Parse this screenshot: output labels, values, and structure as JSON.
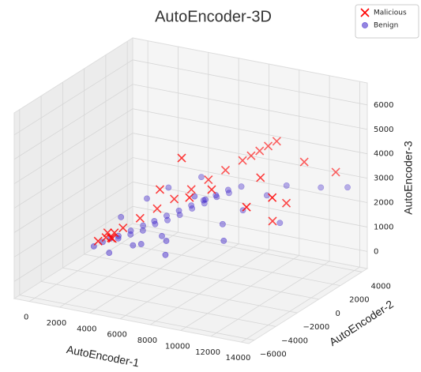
{
  "chart_data": {
    "type": "scatter3d",
    "title": "AutoEncoder-3D",
    "xlabel": "AutoEncoder-1",
    "ylabel": "AutoEncoder-2",
    "zlabel": "AutoEncoder-3",
    "xlim": [
      -1000,
      14500
    ],
    "ylim": [
      -6500,
      4500
    ],
    "zlim": [
      -700,
      6900
    ],
    "xticks": [
      0,
      2000,
      4000,
      6000,
      8000,
      10000,
      12000,
      14000
    ],
    "yticks": [
      {
        "value": -6000,
        "label": "−6000"
      },
      {
        "value": -4000,
        "label": "−4000"
      },
      {
        "value": -2000,
        "label": "−2000"
      },
      0,
      2000,
      4000
    ],
    "zticks": [
      0,
      1000,
      2000,
      3000,
      4000,
      5000,
      6000
    ],
    "grid": true,
    "legend": "upper right",
    "series": [
      {
        "name": "Malicious",
        "color": "#ff0000",
        "marker": "x",
        "x": [
          1500,
          1890,
          2280,
          3060,
          3840,
          4620,
          5400,
          6180,
          6960,
          7740,
          8130,
          8520,
          8910,
          9300,
          1200,
          1700,
          2000,
          1400,
          6150,
          8130,
          12000,
          13700,
          11900,
          13200,
          11370,
          12000,
          7450,
          11000,
          4500
        ],
        "y": [
          -1500,
          -1255,
          -1010,
          -520,
          -30,
          460,
          950,
          1440,
          1930,
          2420,
          2665,
          2910,
          3155,
          3400,
          -1800,
          -1300,
          -1600,
          -1200,
          -1000,
          -1000,
          -3200,
          -3200,
          2300,
          3400,
          100,
          500,
          -2100,
          -500,
          -700
        ],
        "z": [
          700,
          875,
          1050,
          1400,
          1750,
          2100,
          2450,
          2800,
          3150,
          3500,
          3675,
          3850,
          4025,
          4200,
          600,
          650,
          750,
          800,
          4370,
          3310,
          3670,
          4260,
          3970,
          3400,
          2100,
          2800,
          3210,
          4000,
          2800
        ]
      },
      {
        "name": "Benign",
        "color": "#3a1fc8",
        "marker": "o",
        "x": [
          1500,
          1800,
          2100,
          2400,
          2700,
          3000,
          3300,
          3600,
          3900,
          4200,
          4500,
          4800,
          5100,
          5400,
          5700,
          6000,
          6300,
          6600,
          6900,
          7200,
          7500,
          7800,
          8100,
          2000,
          3500,
          4400,
          5200,
          6200,
          7000,
          8500,
          9200,
          10000,
          10800,
          12500,
          13980,
          11500,
          9500,
          3000,
          4000,
          5600,
          1200,
          2500,
          6500,
          8000
        ],
        "y": [
          -1800,
          -1500,
          -1200,
          -1600,
          -900,
          -1300,
          -600,
          -1000,
          -300,
          -800,
          0,
          -500,
          300,
          -200,
          600,
          100,
          900,
          400,
          1200,
          700,
          1500,
          1000,
          1800,
          -800,
          -1800,
          -2300,
          -1500,
          -2500,
          -1000,
          -500,
          400,
          1500,
          2200,
          3000,
          3400,
          600,
          -1800,
          200,
          800,
          1600,
          -2200,
          -2600,
          -3000,
          -1400
        ],
        "z": [
          600,
          700,
          650,
          900,
          800,
          1100,
          950,
          1300,
          1200,
          1500,
          1350,
          1700,
          1550,
          1900,
          1800,
          2100,
          2000,
          2300,
          2250,
          2500,
          2400,
          2700,
          2650,
          1400,
          700,
          1000,
          1200,
          1400,
          2900,
          1800,
          2200,
          2600,
          2900,
          2800,
          2870,
          1900,
          1600,
          2000,
          2400,
          2800,
          500,
          500,
          1000,
          3000
        ]
      }
    ]
  }
}
